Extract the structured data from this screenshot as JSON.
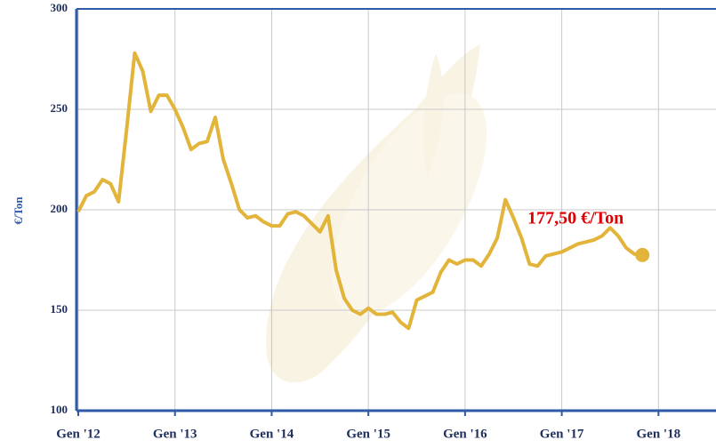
{
  "chart_data": {
    "type": "line",
    "y_label": "€/Ton",
    "annotation": "177,50 €/Ton",
    "categories": [
      "Gen '12",
      null,
      null,
      null,
      null,
      null,
      null,
      null,
      null,
      null,
      null,
      null,
      "Gen '13",
      null,
      null,
      null,
      null,
      null,
      null,
      null,
      null,
      null,
      null,
      null,
      "Gen '14",
      null,
      null,
      null,
      null,
      null,
      null,
      null,
      null,
      null,
      null,
      null,
      "Gen '15",
      null,
      null,
      null,
      null,
      null,
      null,
      null,
      null,
      null,
      null,
      null,
      "Gen '16",
      null,
      null,
      null,
      null,
      null,
      null,
      null,
      null,
      null,
      null,
      null,
      "Gen '17",
      null,
      null,
      null,
      null,
      null,
      null,
      null,
      null,
      null,
      null,
      null,
      "Gen '18"
    ],
    "series": [
      {
        "color": "#e2b43a",
        "values": [
          199,
          207,
          209,
          215,
          213,
          204,
          240,
          278,
          269,
          249,
          257,
          257,
          250,
          241,
          230,
          233,
          234,
          246,
          225,
          213,
          200,
          196,
          197,
          194,
          192,
          192,
          198,
          199,
          197,
          193,
          189,
          197,
          170,
          156,
          150,
          148,
          151,
          148,
          148,
          149,
          144,
          141,
          155,
          157,
          159,
          169,
          175,
          173,
          175,
          175,
          172,
          178,
          186,
          205,
          196,
          186,
          173,
          172,
          177,
          178,
          179,
          181,
          183,
          184,
          185,
          187,
          191,
          187,
          181,
          178,
          177.5,
          null,
          null
        ]
      }
    ],
    "ylim": [
      100,
      300
    ],
    "yticks": [
      100,
      150,
      200,
      250,
      300
    ],
    "grid": true
  }
}
